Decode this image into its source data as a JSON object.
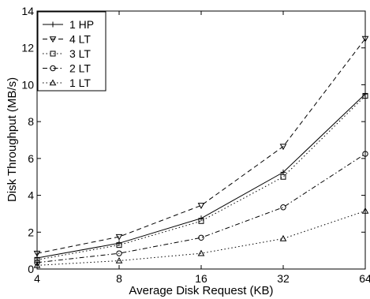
{
  "chart_data": {
    "type": "line",
    "title": "",
    "xlabel": "Average Disk Request (KB)",
    "ylabel": "Disk Throughput (MB/s)",
    "x": [
      4,
      8,
      16,
      32,
      64
    ],
    "x_tick_labels": [
      "4",
      "8",
      "16",
      "32",
      "64"
    ],
    "x_scale": "log2",
    "xlim": [
      4,
      64
    ],
    "ylim": [
      0,
      14
    ],
    "y_ticks": [
      0,
      2,
      4,
      6,
      8,
      10,
      12,
      14
    ],
    "y_tick_labels": [
      "0",
      "2",
      "4",
      "6",
      "8",
      "10",
      "12",
      "14"
    ],
    "grid": false,
    "legend_position": "top-left",
    "series": [
      {
        "name": "1 HP",
        "values": [
          0.6,
          1.4,
          2.75,
          5.25,
          9.5
        ],
        "line_style": "solid",
        "marker": "plus"
      },
      {
        "name": "4 LT",
        "values": [
          0.85,
          1.75,
          3.45,
          6.65,
          12.5
        ],
        "line_style": "dashed",
        "marker": "triangle-down"
      },
      {
        "name": "3 LT",
        "values": [
          0.5,
          1.3,
          2.6,
          5.0,
          9.4
        ],
        "line_style": "dotted",
        "marker": "square"
      },
      {
        "name": "2 LT",
        "values": [
          0.35,
          0.85,
          1.7,
          3.35,
          6.25
        ],
        "line_style": "dashdot",
        "marker": "circle"
      },
      {
        "name": "1 LT",
        "values": [
          0.2,
          0.45,
          0.85,
          1.65,
          3.15
        ],
        "line_style": "dotted",
        "marker": "triangle-up"
      }
    ]
  }
}
